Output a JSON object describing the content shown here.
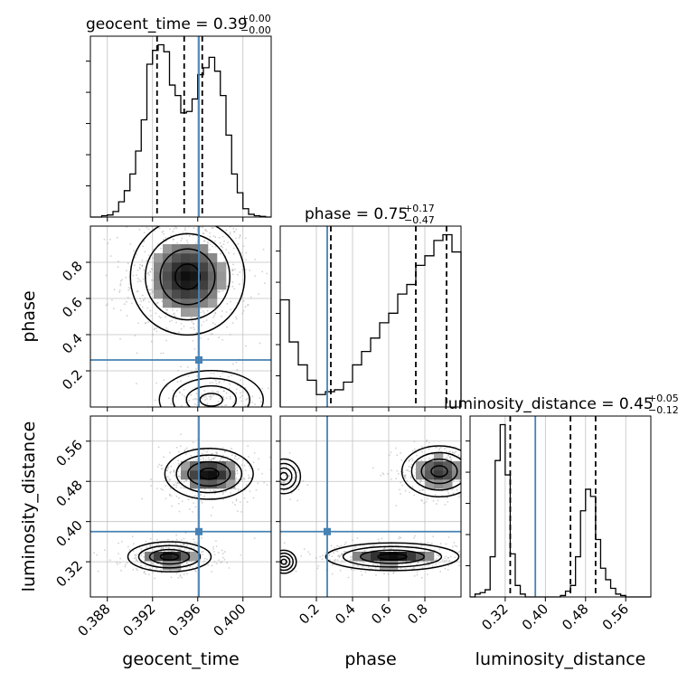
{
  "chart_data": {
    "type": "corner",
    "parameters": [
      "geocent_time",
      "phase",
      "luminosity_distance"
    ],
    "truths": {
      "geocent_time": 0.3961,
      "phase": 0.26,
      "luminosity_distance": 0.38
    },
    "colors": {
      "truth": "#4682b4",
      "hist": "#000000",
      "grid": "#c0c0c0",
      "scatter": "#9a9a9a"
    },
    "grid": true,
    "titles": [
      {
        "param": "geocent_time",
        "name": "geocent_time",
        "median": "0.39",
        "plus": "+0.00",
        "minus": "−0.00"
      },
      {
        "param": "phase",
        "name": "phase",
        "median": "0.75",
        "plus": "+0.17",
        "minus": "−0.47"
      },
      {
        "param": "luminosity_distance",
        "name": "luminosity_distance",
        "median": "0.45",
        "plus": "+0.05",
        "minus": "−0.12"
      }
    ],
    "axes": {
      "geocent_time": {
        "range": [
          0.3865,
          0.4025
        ],
        "ticks": [
          0.388,
          0.392,
          0.396,
          0.4
        ],
        "tick_labels": [
          "0.388",
          "0.392",
          "0.396",
          "0.400"
        ],
        "label": "geocent_time"
      },
      "phase": {
        "range": [
          0.0,
          1.0
        ],
        "ticks": [
          0.2,
          0.4,
          0.6,
          0.8
        ],
        "tick_labels": [
          "0.2",
          "0.4",
          "0.6",
          "0.8"
        ],
        "label": "phase"
      },
      "luminosity_distance": {
        "range": [
          0.25,
          0.61
        ],
        "ticks": [
          0.32,
          0.4,
          0.48,
          0.56
        ],
        "tick_labels": [
          "0.32",
          "0.40",
          "0.48",
          "0.56"
        ],
        "label": "luminosity_distance"
      }
    },
    "marginals": [
      {
        "param": "geocent_time",
        "quantiles": [
          0.3924,
          0.3948,
          0.3964
        ],
        "bins": [
          0.3865,
          0.387,
          0.3875,
          0.388,
          0.3885,
          0.389,
          0.3895,
          0.39,
          0.3905,
          0.391,
          0.3915,
          0.392,
          0.3925,
          0.393,
          0.3935,
          0.394,
          0.3945,
          0.395,
          0.3955,
          0.396,
          0.3965,
          0.397,
          0.3975,
          0.398,
          0.3985,
          0.399,
          0.3995,
          0.4,
          0.4005,
          0.401,
          0.4015,
          0.402,
          0.4025
        ],
        "counts": [
          0,
          0,
          2,
          3,
          8,
          22,
          38,
          62,
          95,
          140,
          220,
          240,
          248,
          238,
          190,
          175,
          150,
          152,
          170,
          205,
          215,
          230,
          210,
          175,
          118,
          62,
          35,
          12,
          4,
          2,
          1,
          0
        ]
      },
      {
        "param": "phase",
        "quantiles": [
          0.28,
          0.75,
          0.92
        ],
        "bins": [
          0.0,
          0.05,
          0.1,
          0.15,
          0.2,
          0.25,
          0.3,
          0.35,
          0.4,
          0.45,
          0.5,
          0.55,
          0.6,
          0.65,
          0.7,
          0.75,
          0.8,
          0.85,
          0.9,
          0.95,
          1.0
        ],
        "counts": [
          112,
          68,
          44,
          28,
          13,
          16,
          18,
          26,
          44,
          58,
          72,
          88,
          98,
          118,
          128,
          148,
          158,
          174,
          180,
          162
        ]
      },
      {
        "param": "luminosity_distance",
        "quantiles": [
          0.33,
          0.45,
          0.5
        ],
        "bins": [
          0.25,
          0.26,
          0.27,
          0.28,
          0.29,
          0.3,
          0.31,
          0.32,
          0.33,
          0.34,
          0.35,
          0.36,
          0.37,
          0.38,
          0.39,
          0.4,
          0.41,
          0.42,
          0.43,
          0.44,
          0.45,
          0.46,
          0.47,
          0.48,
          0.49,
          0.5,
          0.51,
          0.52,
          0.53,
          0.54,
          0.55,
          0.56,
          0.57,
          0.58,
          0.59,
          0.6,
          0.61
        ],
        "counts": [
          0,
          2,
          3,
          5,
          28,
          95,
          120,
          85,
          30,
          8,
          2,
          0,
          0,
          0,
          0,
          0,
          0,
          0,
          1,
          4,
          8,
          28,
          60,
          75,
          70,
          40,
          20,
          12,
          6,
          2,
          1,
          0,
          0,
          0,
          0,
          0
        ]
      }
    ],
    "joints": [
      {
        "x": "geocent_time",
        "y": "phase",
        "modes": [
          {
            "cx": 0.3951,
            "cy": 0.72,
            "sx": 0.0022,
            "sy": 0.14,
            "weight": 0.78
          },
          {
            "cx": 0.3972,
            "cy": 0.04,
            "sx": 0.002,
            "sy": 0.07,
            "weight": 0.22
          }
        ]
      },
      {
        "x": "phase",
        "y": "luminosity_distance",
        "modes": [
          {
            "cx": 0.88,
            "cy": 0.5,
            "sx": 0.09,
            "sy": 0.022,
            "weight": 0.4
          },
          {
            "cx": 0.62,
            "cy": 0.33,
            "sx": 0.16,
            "sy": 0.012,
            "weight": 0.48
          },
          {
            "cx": 0.02,
            "cy": 0.49,
            "sx": 0.04,
            "sy": 0.015,
            "weight": 0.08
          },
          {
            "cx": 0.02,
            "cy": 0.32,
            "sx": 0.03,
            "sy": 0.01,
            "weight": 0.04
          }
        ]
      },
      {
        "x": "geocent_time",
        "y": "luminosity_distance",
        "modes": [
          {
            "cx": 0.397,
            "cy": 0.495,
            "sx": 0.0017,
            "sy": 0.022,
            "weight": 0.52
          },
          {
            "cx": 0.3935,
            "cy": 0.33,
            "sx": 0.0016,
            "sy": 0.013,
            "weight": 0.48
          }
        ]
      }
    ]
  }
}
